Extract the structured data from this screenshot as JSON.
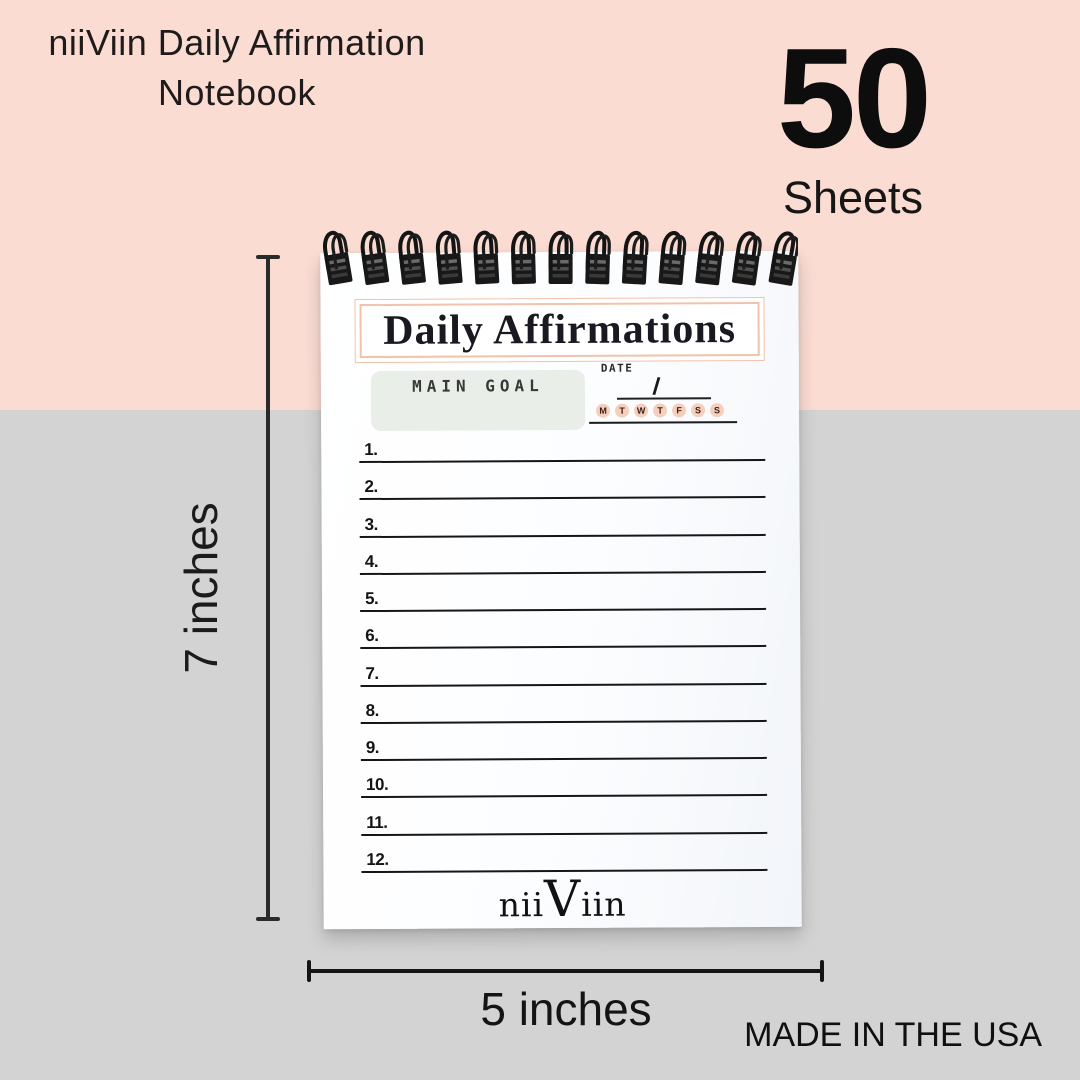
{
  "page": {
    "title_line1": "niiViin Daily Affirmation",
    "title_line2": "Notebook",
    "sheets_count": "50",
    "sheets_label": "Sheets",
    "height_label": "7 inches",
    "width_label": "5 inches",
    "made_in": "MADE IN THE USA"
  },
  "notebook": {
    "page_title": "Daily Affirmations",
    "main_goal_label": "MAIN GOAL",
    "date_label": "DATE",
    "date_separator": "/",
    "days": [
      "M",
      "T",
      "W",
      "T",
      "F",
      "S",
      "S"
    ],
    "line_numbers": [
      "1.",
      "2.",
      "3.",
      "4.",
      "5.",
      "6.",
      "7.",
      "8.",
      "9.",
      "10.",
      "11.",
      "12."
    ],
    "brand": {
      "prefix": "nii",
      "capital": "V",
      "suffix": "iin"
    },
    "spiral_coils": 13
  },
  "colors": {
    "background_top": "#fadcd3",
    "background_bottom": "#d3d3d3",
    "paper": "#fcfdff",
    "peach_border": "#f2c2aa",
    "goal_box": "#e9eee9",
    "day_circle": "#f6cfbc",
    "ink": "#1a1a1a"
  }
}
